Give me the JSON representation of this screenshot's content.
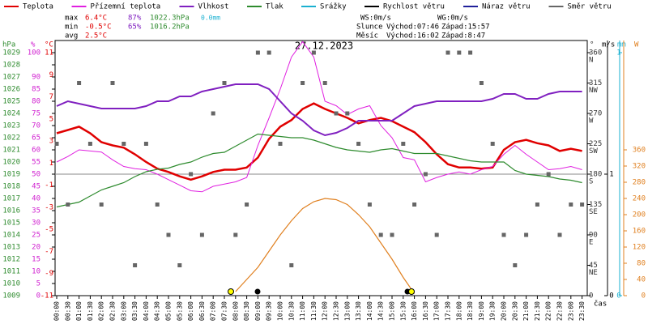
{
  "chart_data": {
    "type": "line",
    "title": "27.12.2023",
    "stats": [
      [
        "max",
        "6.4°C",
        "87%",
        "1022.3hPa",
        "0.0mm"
      ],
      [
        "min",
        "-0.5°C",
        "65%",
        "1016.2hPa"
      ],
      [
        "avg",
        "2.5°C"
      ]
    ],
    "info": [
      [
        "WS:0m/s",
        "WG:0m/s"
      ],
      [
        "Slunce",
        "Východ:07:46",
        "Západ:15:57"
      ],
      [
        "Měsíc",
        "Východ:16:02",
        "Západ:8:47"
      ]
    ],
    "x_label": "čas",
    "x": [
      "00:00",
      "00:30",
      "01:00",
      "01:30",
      "02:00",
      "02:30",
      "03:00",
      "03:30",
      "04:00",
      "04:30",
      "05:00",
      "05:30",
      "06:00",
      "06:30",
      "07:00",
      "07:30",
      "08:00",
      "08:30",
      "09:00",
      "09:30",
      "10:00",
      "10:30",
      "11:00",
      "11:30",
      "12:00",
      "12:30",
      "13:00",
      "13:30",
      "14:00",
      "14:30",
      "15:00",
      "15:30",
      "16:00",
      "16:30",
      "17:00",
      "17:30",
      "18:00",
      "18:30",
      "19:00",
      "19:30",
      "20:00",
      "20:30",
      "21:00",
      "21:30",
      "22:00",
      "22:30",
      "23:00",
      "23:30"
    ],
    "axes": {
      "hpa": {
        "label": "hPa",
        "color": "#2e8b2e",
        "ylim": [
          1009,
          1029
        ],
        "ticks": [
          1009,
          1010,
          1011,
          1012,
          1013,
          1014,
          1015,
          1016,
          1017,
          1018,
          1019,
          1020,
          1021,
          1022,
          1023,
          1024,
          1025,
          1026,
          1027,
          1028,
          1029
        ]
      },
      "pct": {
        "label": "%",
        "color": "#d020d0",
        "ylim": [
          0,
          100
        ],
        "ticks": [
          0,
          5,
          10,
          15,
          20,
          25,
          30,
          35,
          40,
          45,
          50,
          55,
          60,
          65,
          70,
          75,
          80,
          85,
          90,
          100
        ]
      },
      "temp": {
        "label": "°C",
        "color": "#e00000",
        "ylim": [
          -11,
          11
        ],
        "ticks": [
          -11,
          -9,
          -7,
          -5,
          -3,
          -1,
          1,
          3,
          5,
          7,
          9,
          11
        ]
      },
      "dir": {
        "label": "°",
        "color": "#333333",
        "ylim": [
          0,
          360
        ],
        "ticks": [
          0,
          45,
          90,
          135,
          180,
          225,
          270,
          315,
          360
        ],
        "compass": [
          {
            "value": 45,
            "label": "NE"
          },
          {
            "value": 90,
            "label": "E"
          },
          {
            "value": 135,
            "label": "SE"
          },
          {
            "value": 180,
            "label": "S"
          },
          {
            "value": 225,
            "label": "SW"
          },
          {
            "value": 270,
            "label": "W"
          },
          {
            "value": 315,
            "label": "NW"
          },
          {
            "value": 360,
            "label": "N"
          }
        ]
      },
      "ws": {
        "label": "m/s",
        "color": "#000000",
        "ylim": [
          0,
          2
        ],
        "ticks": [
          0,
          1
        ]
      },
      "mm": {
        "label": "mm",
        "color": "#1ab0d0",
        "ylim": [
          0,
          1
        ],
        "ticks": [
          0,
          1
        ]
      },
      "sun": {
        "label": "W",
        "color": "#e08020",
        "ylim": [
          0,
          600
        ],
        "ticks": [
          0,
          40,
          80,
          120,
          160,
          200,
          240,
          280,
          320,
          360
        ]
      }
    },
    "series": [
      {
        "name": "Teplota",
        "color": "#e00000",
        "axis": "temp",
        "width": 2.5,
        "values": [
          3.7,
          4.0,
          4.3,
          3.7,
          2.9,
          2.6,
          2.4,
          1.8,
          1.1,
          0.5,
          0.2,
          -0.2,
          -0.5,
          -0.2,
          0.2,
          0.4,
          0.4,
          0.6,
          1.5,
          3.2,
          4.3,
          4.9,
          5.9,
          6.4,
          5.9,
          5.5,
          5.1,
          4.6,
          4.9,
          5.1,
          4.8,
          4.3,
          3.8,
          2.9,
          1.8,
          0.9,
          0.6,
          0.6,
          0.5,
          0.6,
          2.2,
          2.9,
          3.1,
          2.8,
          2.6,
          2.1,
          2.3,
          2.1
        ]
      },
      {
        "name": "Přízemní teplota",
        "color": "#e020e0",
        "axis": "temp",
        "width": 1,
        "values": [
          1.1,
          1.6,
          2.2,
          2.1,
          2.0,
          1.3,
          0.7,
          0.5,
          0.4,
          0,
          -0.5,
          -1.0,
          -1.5,
          -1.6,
          -1.1,
          -0.9,
          -0.7,
          -0.3,
          2.6,
          5.1,
          7.7,
          10.6,
          12.0,
          10.6,
          6.6,
          6.2,
          5.4,
          5.9,
          6.2,
          4.4,
          3.3,
          1.5,
          1.3,
          -0.7,
          -0.3,
          0.0,
          0.2,
          0.0,
          0.4,
          0.7,
          1.8,
          2.6,
          1.8,
          1.1,
          0.4,
          0.5,
          0.7,
          0.4
        ]
      },
      {
        "name": "Vlhkost",
        "color": "#8020c0",
        "axis": "pct",
        "width": 2,
        "values": [
          78,
          80,
          79,
          78,
          77,
          77,
          77,
          77,
          78,
          80,
          80,
          82,
          82,
          84,
          85,
          86,
          87,
          87,
          87,
          85,
          80,
          75,
          72,
          68,
          66,
          67,
          69,
          72,
          72,
          72,
          72,
          75,
          78,
          79,
          80,
          80,
          80,
          80,
          80,
          81,
          83,
          83,
          81,
          81,
          83,
          84,
          84,
          84
        ]
      },
      {
        "name": "Tlak",
        "color": "#2e8b2e",
        "axis": "hpa",
        "width": 1.2,
        "values": [
          1016.3,
          1016.5,
          1016.7,
          1017.2,
          1017.7,
          1018.0,
          1018.3,
          1018.8,
          1019.2,
          1019.4,
          1019.5,
          1019.8,
          1020.0,
          1020.4,
          1020.7,
          1020.8,
          1021.3,
          1021.8,
          1022.3,
          1022.2,
          1022.1,
          1022.0,
          1022.0,
          1021.8,
          1021.5,
          1021.2,
          1021.0,
          1020.9,
          1020.8,
          1021.0,
          1021.1,
          1020.9,
          1020.7,
          1020.7,
          1020.7,
          1020.5,
          1020.3,
          1020.1,
          1020.0,
          1020.0,
          1020.0,
          1019.3,
          1019.0,
          1018.9,
          1018.8,
          1018.6,
          1018.5,
          1018.3
        ]
      },
      {
        "name": "Srážky",
        "color": "#1ab0d0"
      },
      {
        "name": "Rychlost větru",
        "color": "#000000"
      },
      {
        "name": "Náraz větru",
        "color": "#20209a"
      },
      {
        "name": "Směr větru",
        "color": "#666666",
        "axis": "dir",
        "marker": "square",
        "values": [
          225,
          135,
          315,
          225,
          135,
          315,
          225,
          45,
          225,
          135,
          90,
          45,
          180,
          90,
          270,
          315,
          90,
          135,
          360,
          360,
          225,
          45,
          315,
          360,
          315,
          270,
          270,
          225,
          135,
          90,
          90,
          225,
          135,
          180,
          90,
          360,
          360,
          360,
          315,
          225,
          90,
          45,
          90,
          135,
          180,
          90,
          135,
          135
        ]
      }
    ],
    "sun": {
      "color": "#e08020",
      "axis": "sun",
      "values": [
        null,
        null,
        null,
        null,
        null,
        null,
        null,
        null,
        null,
        null,
        null,
        null,
        null,
        null,
        null,
        null,
        10,
        40,
        70,
        110,
        150,
        185,
        215,
        232,
        240,
        237,
        225,
        200,
        170,
        130,
        90,
        45,
        5,
        null,
        null,
        null,
        null,
        null,
        null,
        null,
        null,
        null,
        null,
        null,
        null,
        null,
        null,
        null
      ]
    }
  }
}
